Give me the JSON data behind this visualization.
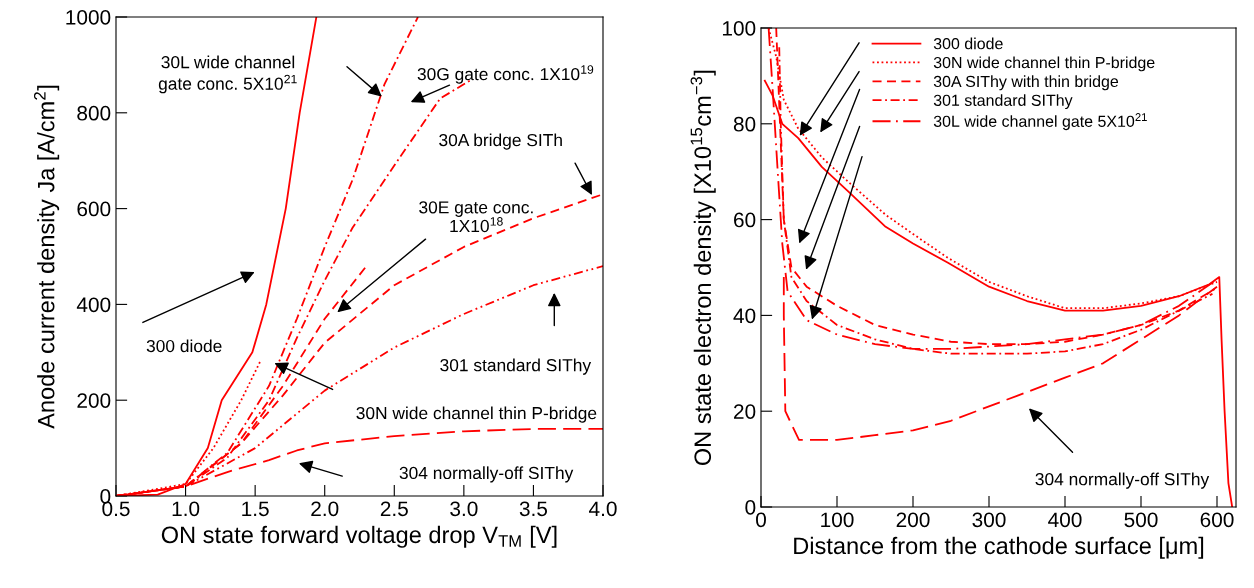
{
  "chart_data": [
    {
      "type": "line",
      "xlabel": "ON state forward voltage drop V$_{TM}$ [V]",
      "ylabel": "Anode current density Ja [A/cm$^{2}$]",
      "xlim": [
        0.5,
        4.0
      ],
      "ylim": [
        0,
        1000
      ],
      "xticks": [
        0.5,
        {
          "value": 1.0,
          "label": "1.0"
        },
        1.5,
        {
          "value": 2.0,
          "label": "2.0"
        },
        2.5,
        {
          "value": 3.0,
          "label": "3.0"
        },
        3.5,
        {
          "value": 4.0,
          "label": "4.0"
        }
      ],
      "yticks": [
        0,
        200,
        400,
        600,
        800,
        1000
      ],
      "grid": false,
      "legend": false,
      "marker": "none",
      "series": [
        {
          "color": "#ff0000",
          "line_style": "solid",
          "x": [
            0.5,
            0.8,
            1.0,
            1.16,
            1.26,
            1.48,
            1.58,
            1.72,
            1.82,
            1.94
          ],
          "values": [
            0,
            3,
            25,
            100,
            200,
            300,
            400,
            600,
            800,
            1000
          ]
        },
        {
          "color": "#ff0000",
          "line_style": "dotted",
          "x": [
            0.5,
            1.0,
            1.2,
            1.4,
            1.54
          ],
          "values": [
            0,
            25,
            100,
            200,
            283
          ]
        },
        {
          "color": "#ff0000",
          "line_style": "dashdot",
          "x": [
            0.5,
            1.0,
            1.3,
            1.6,
            1.8,
            2.0,
            2.2,
            2.43,
            2.67
          ],
          "values": [
            0,
            20,
            90,
            230,
            370,
            520,
            660,
            860,
            1000
          ]
        },
        {
          "color": "#ff0000",
          "line_style": "dashdot",
          "x": [
            0.5,
            1.0,
            1.3,
            1.6,
            1.8,
            2.0,
            2.2,
            2.5,
            2.83,
            3.06
          ],
          "values": [
            0,
            20,
            80,
            200,
            330,
            450,
            560,
            690,
            830,
            870
          ]
        },
        {
          "color": "#ff0000",
          "line_style": "dashed",
          "x": [
            0.5,
            1.0,
            1.4,
            1.7,
            2.0,
            2.3
          ],
          "values": [
            0,
            20,
            110,
            230,
            370,
            480
          ]
        },
        {
          "color": "#ff0000",
          "line_style": "dashed",
          "x": [
            0.5,
            1.0,
            1.4,
            1.7,
            2.0,
            2.5,
            3.0,
            3.5,
            4.0
          ],
          "values": [
            0,
            20,
            110,
            210,
            320,
            440,
            520,
            580,
            630
          ]
        },
        {
          "color": "#ff0000",
          "line_style": "dashdotdot",
          "x": [
            0.5,
            1.0,
            1.5,
            2.0,
            2.5,
            3.0,
            3.5,
            4.0
          ],
          "values": [
            0,
            20,
            100,
            220,
            310,
            380,
            440,
            480
          ]
        },
        {
          "color": "#ff0000",
          "line_style": "longdash",
          "x": [
            0.5,
            1.0,
            1.3,
            1.6,
            1.8,
            2.0,
            2.5,
            3.0,
            3.5,
            4.0
          ],
          "values": [
            0,
            20,
            50,
            75,
            95,
            110,
            125,
            135,
            140,
            140
          ]
        }
      ],
      "annotations": [
        "30L wide channel\ngate conc. 5X10$^{21}$",
        "30G gate conc. 1X10$^{19}$",
        {
          "text": "30A bridge SITh",
          "x": 3.93,
          "y": 623
        },
        "30E gate conc.\n1X10$^{18}$",
        "300 diode",
        "301 standard SIThy",
        "30N wide channel thin P-bridge",
        "304 normally-off SIThy"
      ]
    },
    {
      "type": "line",
      "xlabel": "Distance from the cathode surface [μm]",
      "ylabel": "ON state electron density [X10$^{15}$cm$^{−3}$]",
      "xlim": [
        0,
        625
      ],
      "ylim": [
        0,
        100
      ],
      "xticks": [
        0,
        100,
        200,
        300,
        400,
        500,
        600
      ],
      "yticks": [
        0,
        20,
        40,
        60,
        80,
        100
      ],
      "grid": false,
      "legend": "top right",
      "marker": "none",
      "series": [
        {
          "name": "300 diode",
          "color": "#ff0000",
          "line_style": "solid",
          "x": [
            5,
            15,
            28,
            49,
            80,
            114,
            164,
            200,
            246,
            300,
            350,
            400,
            450,
            500,
            550,
            590,
            603,
            606,
            610,
            615,
            620
          ],
          "values": [
            89,
            86,
            80,
            77,
            71,
            66,
            58.5,
            55,
            51,
            46,
            43,
            41,
            41,
            42,
            44,
            46.5,
            48,
            35,
            20,
            5,
            0
          ]
        },
        {
          "name": "30N wide channel thin P-bridge",
          "color": "#ff0000",
          "line_style": "dotted",
          "x": [
            10,
            20,
            30,
            49,
            80,
            114,
            164,
            200,
            246,
            300,
            350,
            400,
            450,
            500,
            550,
            600
          ],
          "values": [
            100,
            94,
            85,
            79,
            73,
            68,
            61,
            57,
            52,
            47,
            44,
            41.5,
            41.5,
            42.5,
            44,
            47
          ]
        },
        {
          "name": "30A SIThy with thin bridge",
          "color": "#ff0000",
          "line_style": "dashed",
          "x": [
            20,
            25,
            30,
            40,
            60,
            100,
            150,
            200,
            250,
            300,
            350,
            400,
            450,
            500,
            550,
            597
          ],
          "values": [
            100,
            80,
            60,
            50,
            46,
            42,
            38,
            36,
            34.5,
            34,
            34,
            34.5,
            36,
            38,
            41,
            45.5
          ]
        },
        {
          "name": "301 standard SIThy",
          "color": "#ff0000",
          "line_style": "dashdot",
          "x": [
            24,
            26,
            30,
            40,
            60,
            100,
            150,
            200,
            250,
            300,
            350,
            400,
            450,
            500,
            550,
            594
          ],
          "values": [
            96,
            80,
            60,
            48,
            43,
            38,
            35,
            33,
            32,
            32,
            32,
            32.5,
            34,
            37,
            41,
            44.5
          ]
        },
        {
          "name": "30L wide channel gate 5X10$^{21}$",
          "color": "#ff0000",
          "line_style": "longdashdot",
          "x": [
            10,
            15,
            22,
            28,
            35,
            60,
            100,
            150,
            200,
            250,
            300,
            350,
            400,
            450,
            500,
            550,
            600
          ],
          "values": [
            100,
            88,
            70,
            55,
            45,
            39,
            36,
            34,
            33,
            33,
            33.5,
            34,
            35,
            36,
            38,
            42,
            47.5
          ]
        },
        {
          "color": "#ff0000",
          "line_style": "longdash",
          "x": [
            30,
            30,
            32,
            50,
            100,
            150,
            200,
            250,
            300,
            350,
            400,
            450,
            500,
            550,
            600
          ],
          "values": [
            48,
            40,
            20,
            14,
            14,
            15,
            16,
            18,
            21,
            24,
            27,
            30,
            35,
            40,
            46
          ]
        }
      ],
      "annotations": [
        "304 normally-off SIThy"
      ]
    }
  ]
}
